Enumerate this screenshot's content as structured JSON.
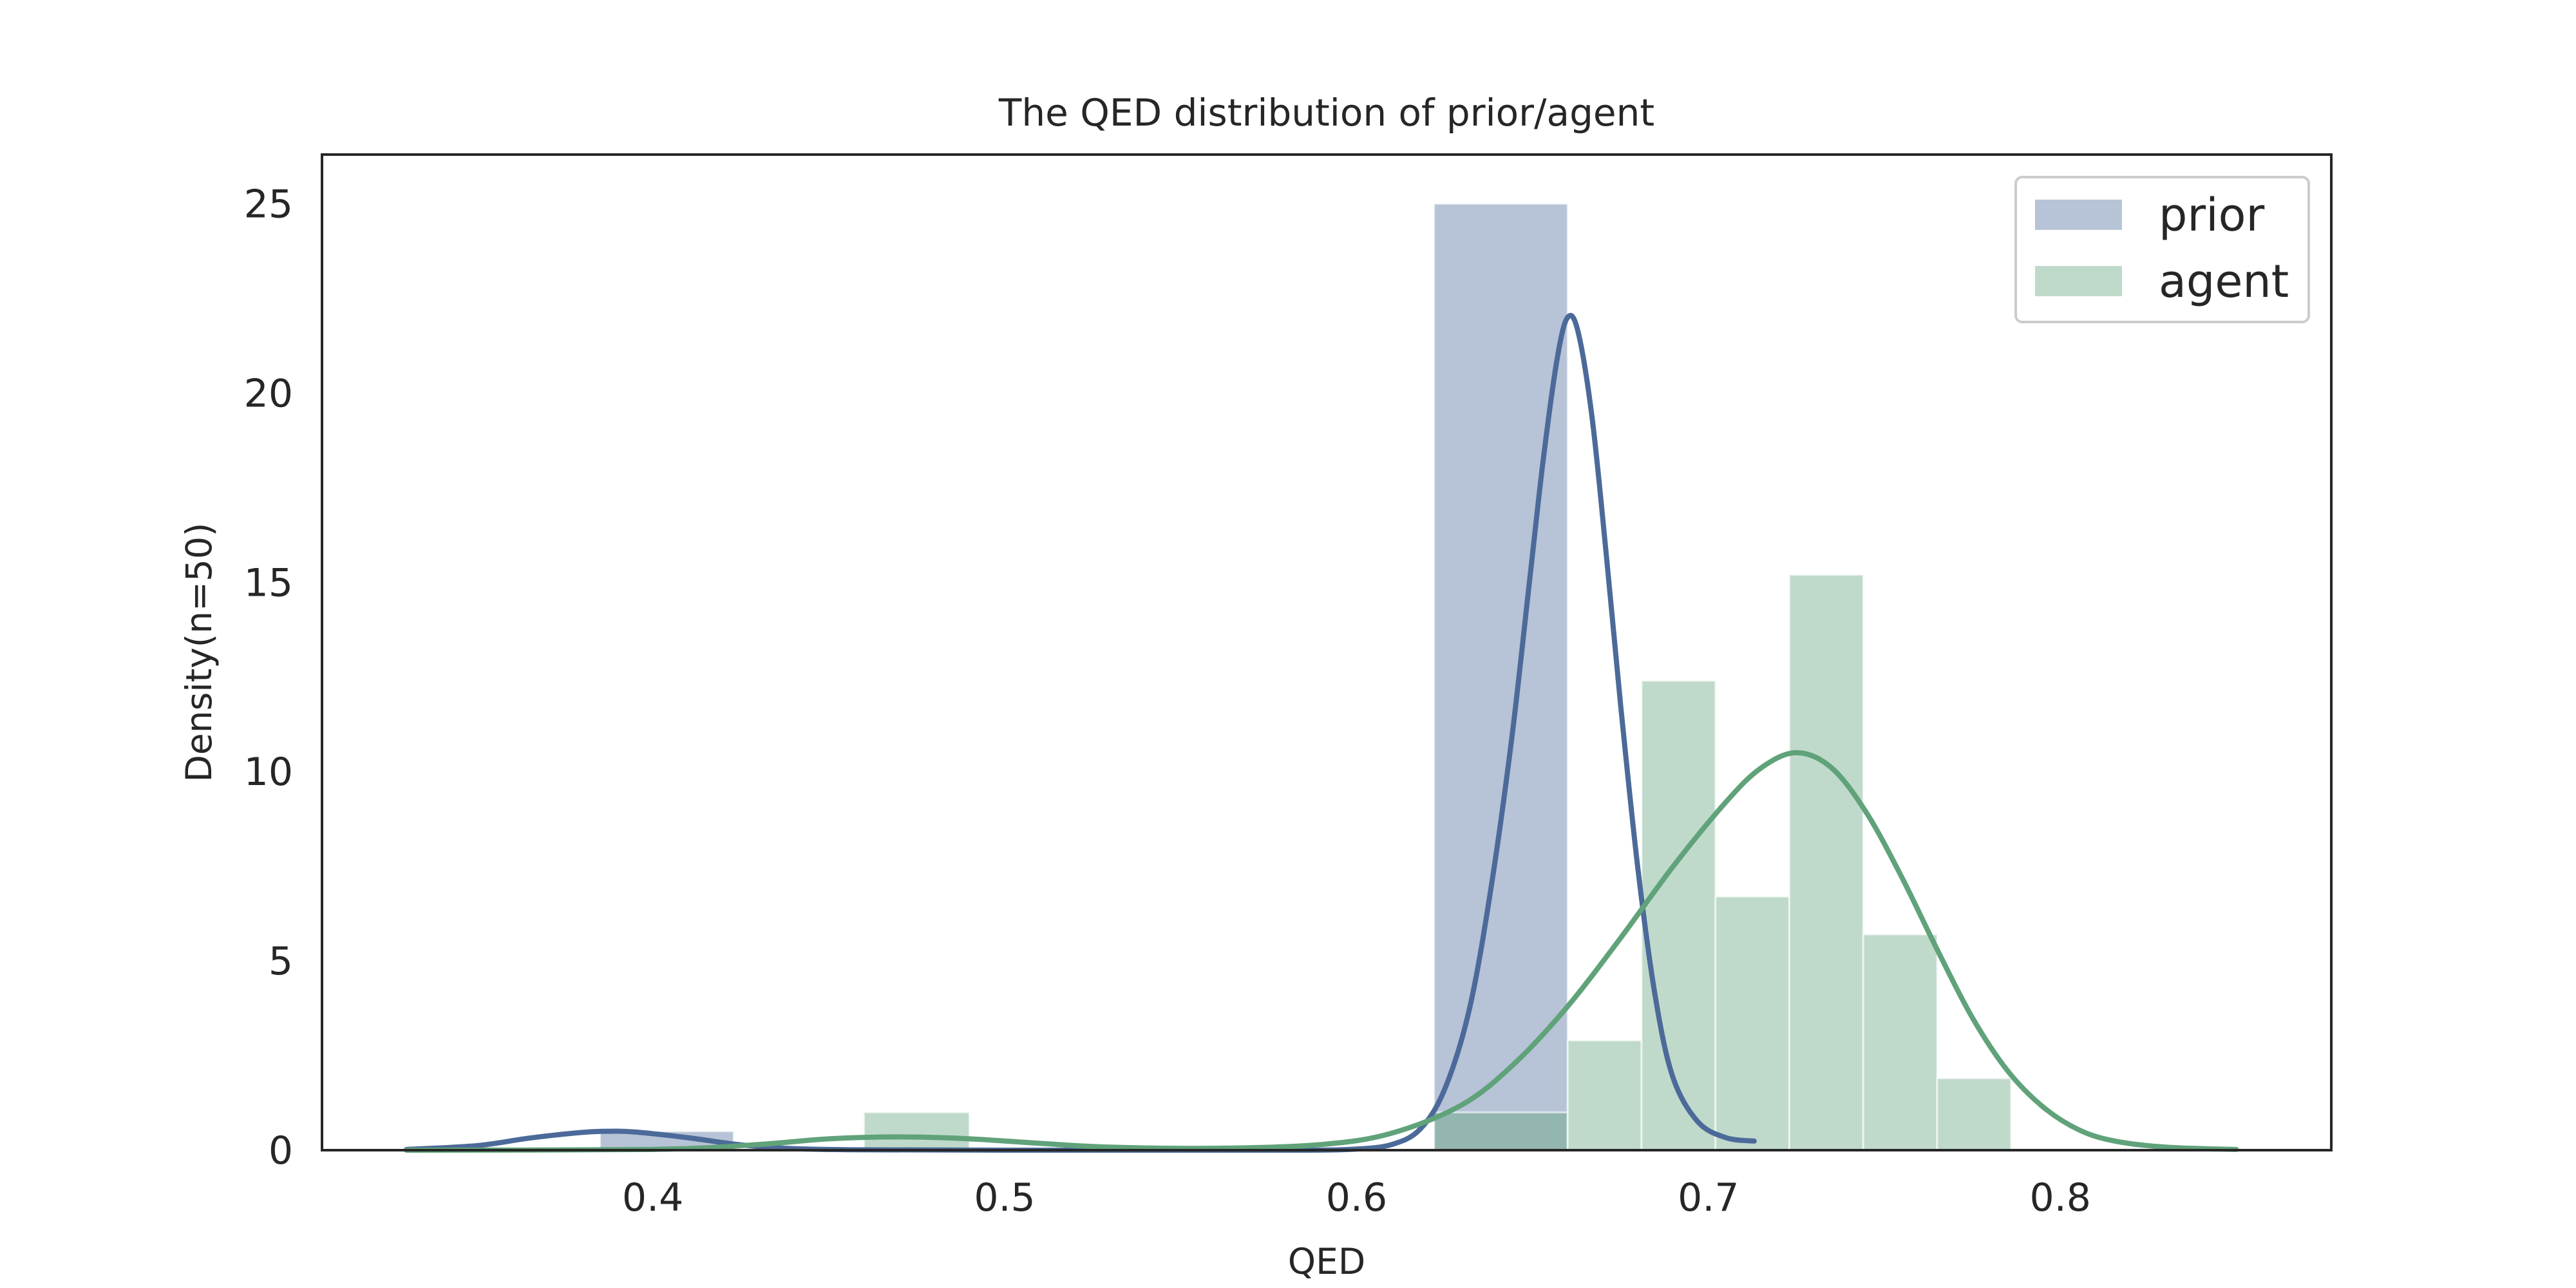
{
  "chart_data": {
    "type": "bar",
    "title": "The QED distribution of prior/agent",
    "xlabel": "QED",
    "ylabel": "Density(n=50)",
    "xlim": [
      0.306,
      0.877
    ],
    "ylim": [
      0,
      26.3
    ],
    "xticks": [
      0.4,
      0.5,
      0.6,
      0.7,
      0.8
    ],
    "xtick_labels": [
      "0.4",
      "0.5",
      "0.6",
      "0.7",
      "0.8"
    ],
    "yticks": [
      0,
      5,
      10,
      15,
      20,
      25
    ],
    "ytick_labels": [
      "0",
      "5",
      "10",
      "15",
      "20",
      "25"
    ],
    "grid": false,
    "legend": "upper right",
    "series": [
      {
        "name": "prior",
        "color": "#4c6a99",
        "bins": [
          {
            "x0": 0.385,
            "x1": 0.423,
            "density": 0.5
          },
          {
            "x0": 0.622,
            "x1": 0.66,
            "density": 25.0
          }
        ],
        "kde": [
          [
            0.33,
            0.02
          ],
          [
            0.35,
            0.12
          ],
          [
            0.365,
            0.32
          ],
          [
            0.38,
            0.47
          ],
          [
            0.388,
            0.5
          ],
          [
            0.395,
            0.48
          ],
          [
            0.41,
            0.33
          ],
          [
            0.425,
            0.14
          ],
          [
            0.44,
            0.04
          ],
          [
            0.46,
            0.01
          ],
          [
            0.5,
            0.0
          ],
          [
            0.55,
            0.0
          ],
          [
            0.585,
            0.0
          ],
          [
            0.6,
            0.03
          ],
          [
            0.61,
            0.15
          ],
          [
            0.618,
            0.55
          ],
          [
            0.625,
            1.6
          ],
          [
            0.632,
            3.7
          ],
          [
            0.638,
            6.8
          ],
          [
            0.644,
            10.8
          ],
          [
            0.649,
            14.9
          ],
          [
            0.653,
            18.2
          ],
          [
            0.657,
            20.9
          ],
          [
            0.66,
            22.0
          ],
          [
            0.663,
            21.6
          ],
          [
            0.667,
            19.3
          ],
          [
            0.671,
            15.7
          ],
          [
            0.675,
            11.8
          ],
          [
            0.68,
            7.4
          ],
          [
            0.685,
            4.0
          ],
          [
            0.69,
            1.9
          ],
          [
            0.697,
            0.75
          ],
          [
            0.705,
            0.33
          ],
          [
            0.713,
            0.24
          ]
        ]
      },
      {
        "name": "agent",
        "color": "#60a27a",
        "bins": [
          {
            "x0": 0.46,
            "x1": 0.49,
            "density": 1.0
          },
          {
            "x0": 0.622,
            "x1": 0.66,
            "density": 1.0
          },
          {
            "x0": 0.66,
            "x1": 0.681,
            "density": 2.9
          },
          {
            "x0": 0.681,
            "x1": 0.702,
            "density": 12.4
          },
          {
            "x0": 0.702,
            "x1": 0.723,
            "density": 6.7
          },
          {
            "x0": 0.723,
            "x1": 0.744,
            "density": 15.2
          },
          {
            "x0": 0.744,
            "x1": 0.765,
            "density": 5.7
          },
          {
            "x0": 0.765,
            "x1": 0.786,
            "density": 1.9
          }
        ],
        "kde": [
          [
            0.33,
            0.0
          ],
          [
            0.4,
            0.02
          ],
          [
            0.43,
            0.15
          ],
          [
            0.45,
            0.3
          ],
          [
            0.47,
            0.35
          ],
          [
            0.49,
            0.3
          ],
          [
            0.51,
            0.18
          ],
          [
            0.53,
            0.08
          ],
          [
            0.56,
            0.05
          ],
          [
            0.59,
            0.15
          ],
          [
            0.61,
            0.45
          ],
          [
            0.63,
            1.2
          ],
          [
            0.645,
            2.3
          ],
          [
            0.66,
            3.8
          ],
          [
            0.675,
            5.6
          ],
          [
            0.69,
            7.5
          ],
          [
            0.705,
            9.2
          ],
          [
            0.715,
            10.1
          ],
          [
            0.725,
            10.5
          ],
          [
            0.735,
            10.1
          ],
          [
            0.745,
            8.9
          ],
          [
            0.755,
            7.2
          ],
          [
            0.765,
            5.3
          ],
          [
            0.775,
            3.5
          ],
          [
            0.785,
            2.1
          ],
          [
            0.795,
            1.15
          ],
          [
            0.805,
            0.55
          ],
          [
            0.815,
            0.25
          ],
          [
            0.83,
            0.08
          ],
          [
            0.85,
            0.02
          ]
        ]
      }
    ]
  }
}
